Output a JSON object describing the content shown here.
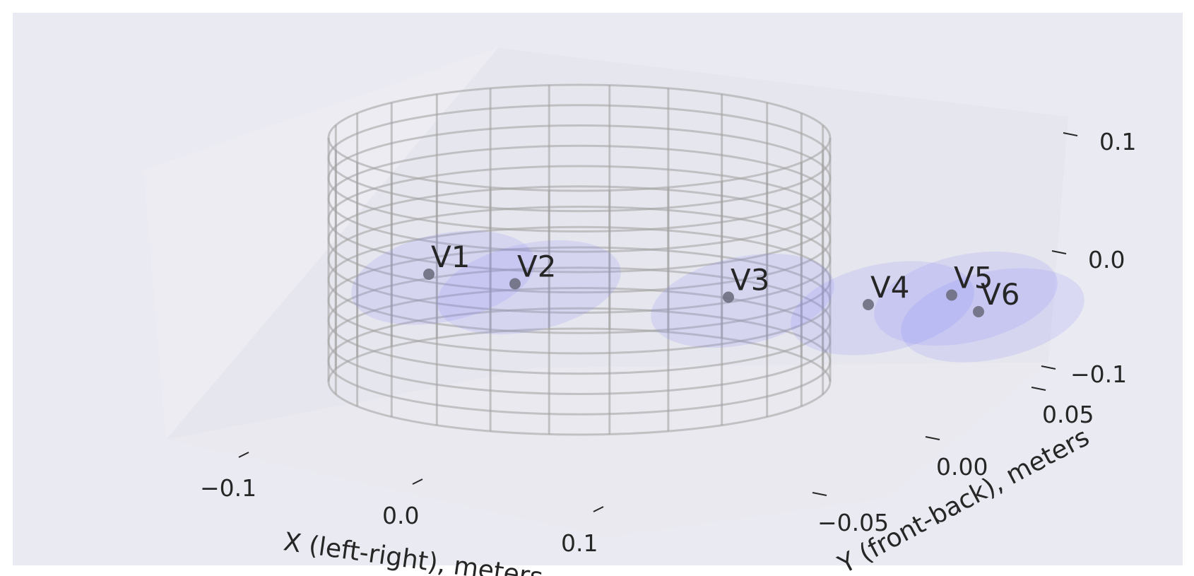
{
  "chart_data": {
    "type": "scatter",
    "projection": "3d",
    "title": "",
    "xlabel": "X (left-right), meters",
    "ylabel": "Y (front-back), meters",
    "zlabel": "",
    "x_ticks": [
      "−0.1",
      "0.0",
      "0.1"
    ],
    "y_ticks": [
      "0.05",
      "0.00",
      "−0.05"
    ],
    "z_ticks": [
      "0.1",
      "0.0",
      "−0.1"
    ],
    "xlim": [
      -0.15,
      0.15
    ],
    "ylim": [
      -0.1,
      0.1
    ],
    "zlim": [
      -0.12,
      0.12
    ],
    "grid": true,
    "legend": "none",
    "points": [
      {
        "label": "V1",
        "x": -0.07,
        "y": 0.07,
        "z": 0.02
      },
      {
        "label": "V2",
        "x": -0.03,
        "y": 0.07,
        "z": 0.01
      },
      {
        "label": "V3",
        "x": 0.04,
        "y": 0.0,
        "z": -0.03
      },
      {
        "label": "V4",
        "x": 0.08,
        "y": -0.06,
        "z": -0.06
      },
      {
        "label": "V5",
        "x": 0.12,
        "y": -0.06,
        "z": -0.05
      },
      {
        "label": "V6",
        "x": 0.14,
        "y": -0.04,
        "z": -0.06
      }
    ],
    "decorations": {
      "cylinder_wireframe": true,
      "ellipsoid_per_point": true
    },
    "colors": {
      "pane_back": "#e6e6ee",
      "background": "#eaeaf2",
      "point": "#6e6e80",
      "ellipsoid": "#7878ff",
      "wireframe": "#a0a0a0",
      "text": "#262626"
    }
  }
}
